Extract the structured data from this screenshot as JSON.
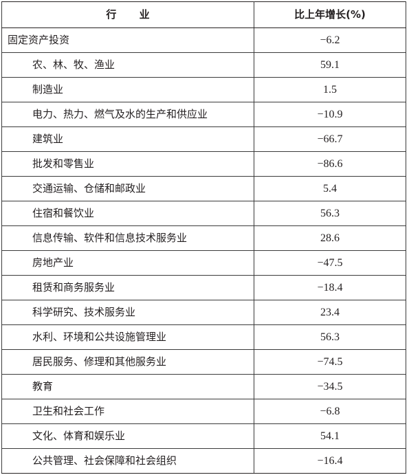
{
  "table": {
    "headers": {
      "industry": "行 业",
      "growth": "比上年增长(%)"
    },
    "rows": [
      {
        "industry": "固定资产投资",
        "growth": "−6.2"
      },
      {
        "industry": "农、林、牧、渔业",
        "growth": "59.1"
      },
      {
        "industry": "制造业",
        "growth": "1.5"
      },
      {
        "industry": "电力、热力、燃气及水的生产和供应业",
        "growth": "−10.9"
      },
      {
        "industry": "建筑业",
        "growth": "−66.7"
      },
      {
        "industry": "批发和零售业",
        "growth": "−86.6"
      },
      {
        "industry": "交通运输、仓储和邮政业",
        "growth": "5.4"
      },
      {
        "industry": "住宿和餐饮业",
        "growth": "56.3"
      },
      {
        "industry": "信息传输、软件和信息技术服务业",
        "growth": "28.6"
      },
      {
        "industry": "房地产业",
        "growth": "−47.5"
      },
      {
        "industry": "租赁和商务服务业",
        "growth": "−18.4"
      },
      {
        "industry": "科学研究、技术服务业",
        "growth": "23.4"
      },
      {
        "industry": "水利、环境和公共设施管理业",
        "growth": "56.3"
      },
      {
        "industry": "居民服务、修理和其他服务业",
        "growth": "−74.5"
      },
      {
        "industry": "教育",
        "growth": "−34.5"
      },
      {
        "industry": "卫生和社会工作",
        "growth": "−6.8"
      },
      {
        "industry": "文化、体育和娱乐业",
        "growth": "54.1"
      },
      {
        "industry": "公共管理、社会保障和社会组织",
        "growth": "−16.4"
      }
    ]
  }
}
